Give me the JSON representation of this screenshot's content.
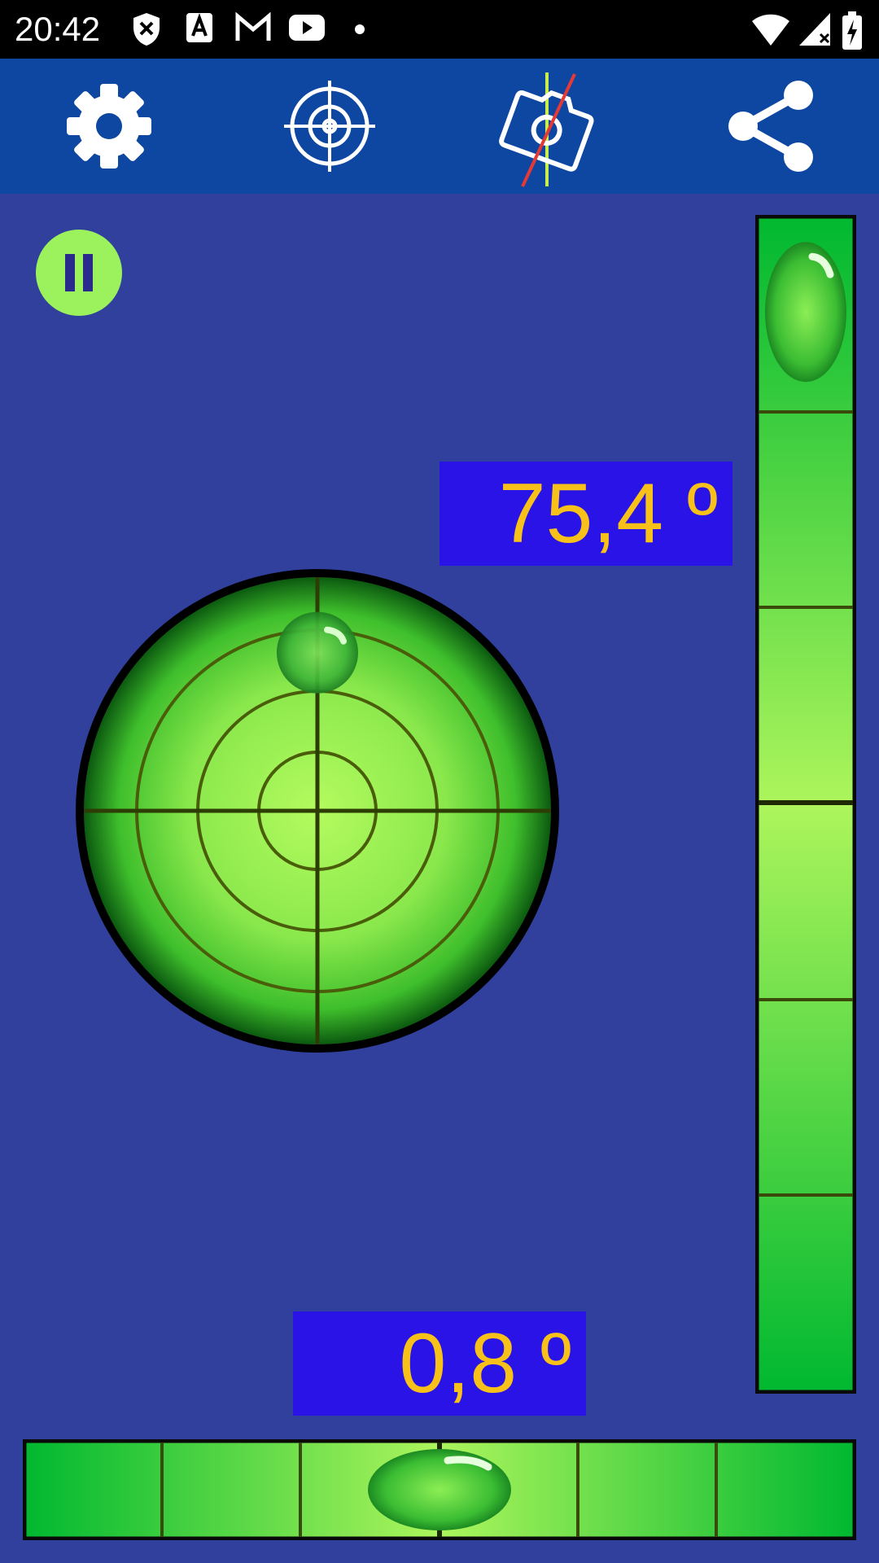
{
  "status_bar": {
    "time": "20:42",
    "left_icons": [
      "shield-x-icon",
      "font-a-icon",
      "gmail-icon",
      "youtube-icon",
      "dot-icon"
    ],
    "right_icons": [
      "wifi-icon",
      "cell-signal-icon",
      "battery-charging-icon"
    ]
  },
  "toolbar": {
    "buttons": [
      "gear-icon",
      "crosshair-icon",
      "camera-calibrate-icon",
      "share-icon"
    ]
  },
  "pause_button": {
    "icon": "pause-icon"
  },
  "readouts": {
    "vertical_angle": "75,4 º",
    "horizontal_angle": "0,8 º"
  },
  "bubbles": {
    "circle_offset_y_fraction": -0.82,
    "vertical_tube_fraction_from_top": 0.08,
    "horizontal_tube_fraction_from_left": 0.5
  },
  "colors": {
    "background": "#313f9d",
    "toolbar": "#0d47a1",
    "readout_bg": "#2913e6",
    "readout_text": "#f7c11a",
    "accent_green": "#9bf25c"
  }
}
